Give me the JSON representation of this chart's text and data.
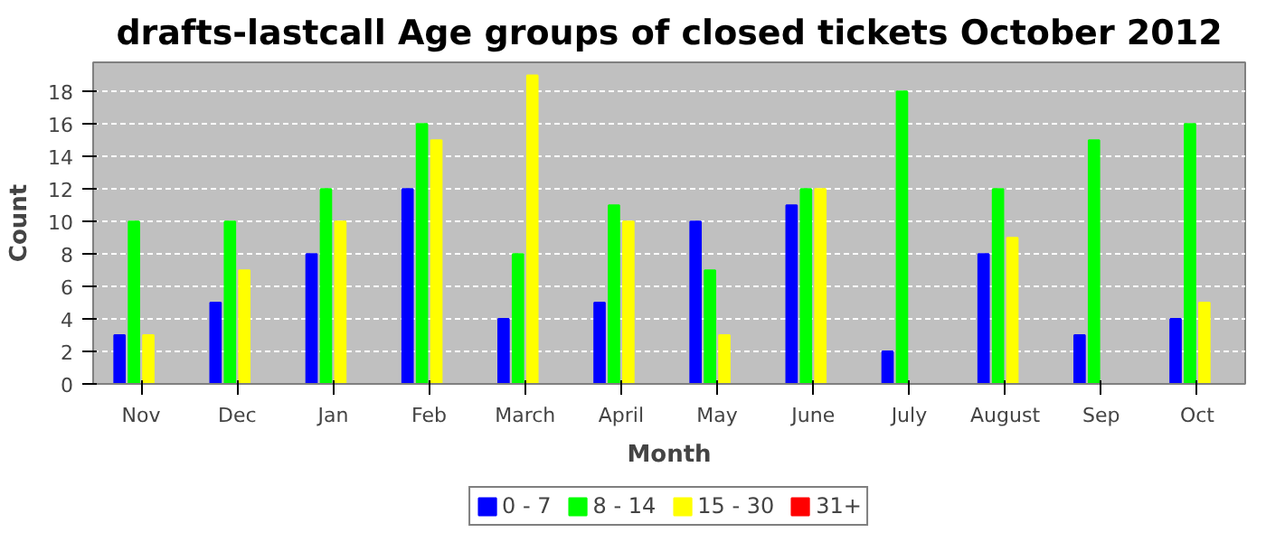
{
  "chart_data": {
    "type": "bar",
    "title": "drafts-lastcall Age groups of closed tickets October 2012",
    "xlabel": "Month",
    "ylabel": "Count",
    "categories": [
      "Nov",
      "Dec",
      "Jan",
      "Feb",
      "March",
      "April",
      "May",
      "June",
      "July",
      "August",
      "Sep",
      "Oct"
    ],
    "series": [
      {
        "name": "0 - 7",
        "color": "#0000ff",
        "values": [
          3,
          5,
          8,
          12,
          4,
          5,
          10,
          11,
          2,
          8,
          3,
          4
        ]
      },
      {
        "name": "8 - 14",
        "color": "#00ff00",
        "values": [
          10,
          10,
          12,
          16,
          8,
          11,
          7,
          12,
          18,
          12,
          15,
          16
        ]
      },
      {
        "name": "15 - 30",
        "color": "#ffff00",
        "values": [
          3,
          7,
          10,
          15,
          19,
          10,
          3,
          12,
          0,
          9,
          0,
          5
        ]
      },
      {
        "name": "31+",
        "color": "#ff0000",
        "values": [
          0,
          0,
          0,
          0,
          0,
          0,
          0,
          0,
          0,
          0,
          0,
          0
        ]
      }
    ],
    "ylim": [
      0,
      19.8
    ],
    "yticks": [
      0,
      2,
      4,
      6,
      8,
      10,
      12,
      14,
      16,
      18
    ],
    "grid": "y",
    "legend": "bottom"
  }
}
